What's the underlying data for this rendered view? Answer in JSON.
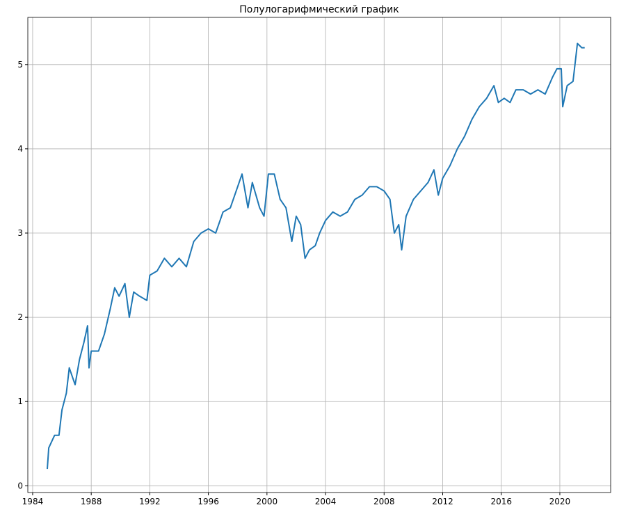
{
  "chart_data": {
    "type": "line",
    "title": "Полулогарифмический график",
    "x": [
      1985.0,
      1985.1,
      1985.5,
      1985.8,
      1986.0,
      1986.3,
      1986.5,
      1986.7,
      1986.9,
      1987.2,
      1987.5,
      1987.75,
      1987.85,
      1988.0,
      1988.5,
      1988.9,
      1989.3,
      1989.6,
      1989.9,
      1990.3,
      1990.6,
      1990.9,
      1991.3,
      1991.8,
      1992.0,
      1992.5,
      1993.0,
      1993.5,
      1994.0,
      1994.5,
      1995.0,
      1995.5,
      1996.0,
      1996.5,
      1997.0,
      1997.5,
      1998.0,
      1998.3,
      1998.7,
      1999.0,
      1999.5,
      1999.8,
      2000.1,
      2000.5,
      2000.9,
      2001.3,
      2001.7,
      2002.0,
      2002.3,
      2002.6,
      2002.9,
      2003.3,
      2003.6,
      2004.0,
      2004.5,
      2005.0,
      2005.5,
      2006.0,
      2006.5,
      2007.0,
      2007.5,
      2008.0,
      2008.4,
      2008.7,
      2009.0,
      2009.2,
      2009.5,
      2010.0,
      2010.5,
      2011.0,
      2011.4,
      2011.7,
      2012.0,
      2012.5,
      2013.0,
      2013.5,
      2014.0,
      2014.5,
      2015.0,
      2015.5,
      2015.8,
      2016.2,
      2016.6,
      2017.0,
      2017.5,
      2018.0,
      2018.5,
      2019.0,
      2019.5,
      2019.8,
      2020.1,
      2020.2,
      2020.5,
      2020.9,
      2021.2,
      2021.5,
      2021.7
    ],
    "series": [
      {
        "color": "#1f77b4",
        "values": [
          0.2,
          0.45,
          0.6,
          0.6,
          0.9,
          1.1,
          1.4,
          1.3,
          1.2,
          1.5,
          1.7,
          1.9,
          1.4,
          1.6,
          1.6,
          1.8,
          2.1,
          2.35,
          2.25,
          2.4,
          2.0,
          2.3,
          2.25,
          2.2,
          2.5,
          2.55,
          2.7,
          2.6,
          2.7,
          2.6,
          2.9,
          3.0,
          3.05,
          3.0,
          3.25,
          3.3,
          3.55,
          3.7,
          3.3,
          3.6,
          3.3,
          3.2,
          3.7,
          3.7,
          3.4,
          3.3,
          2.9,
          3.2,
          3.1,
          2.7,
          2.8,
          2.85,
          3.0,
          3.15,
          3.25,
          3.2,
          3.25,
          3.4,
          3.45,
          3.55,
          3.55,
          3.5,
          3.4,
          3.0,
          3.1,
          2.8,
          3.2,
          3.4,
          3.5,
          3.6,
          3.75,
          3.45,
          3.65,
          3.8,
          4.0,
          4.15,
          4.35,
          4.5,
          4.6,
          4.75,
          4.55,
          4.6,
          4.55,
          4.7,
          4.7,
          4.65,
          4.7,
          4.65,
          4.85,
          4.95,
          4.95,
          4.5,
          4.75,
          4.8,
          5.25,
          5.2,
          5.2
        ]
      }
    ],
    "xlim": [
      1983.67,
      2023.47
    ],
    "xticks": [
      1984,
      1988,
      1992,
      1996,
      2000,
      2004,
      2008,
      2012,
      2016,
      2020
    ],
    "ylim": [
      -0.08,
      5.56
    ],
    "yticks": [
      0,
      1,
      2,
      3,
      4,
      5
    ],
    "grid": true
  }
}
